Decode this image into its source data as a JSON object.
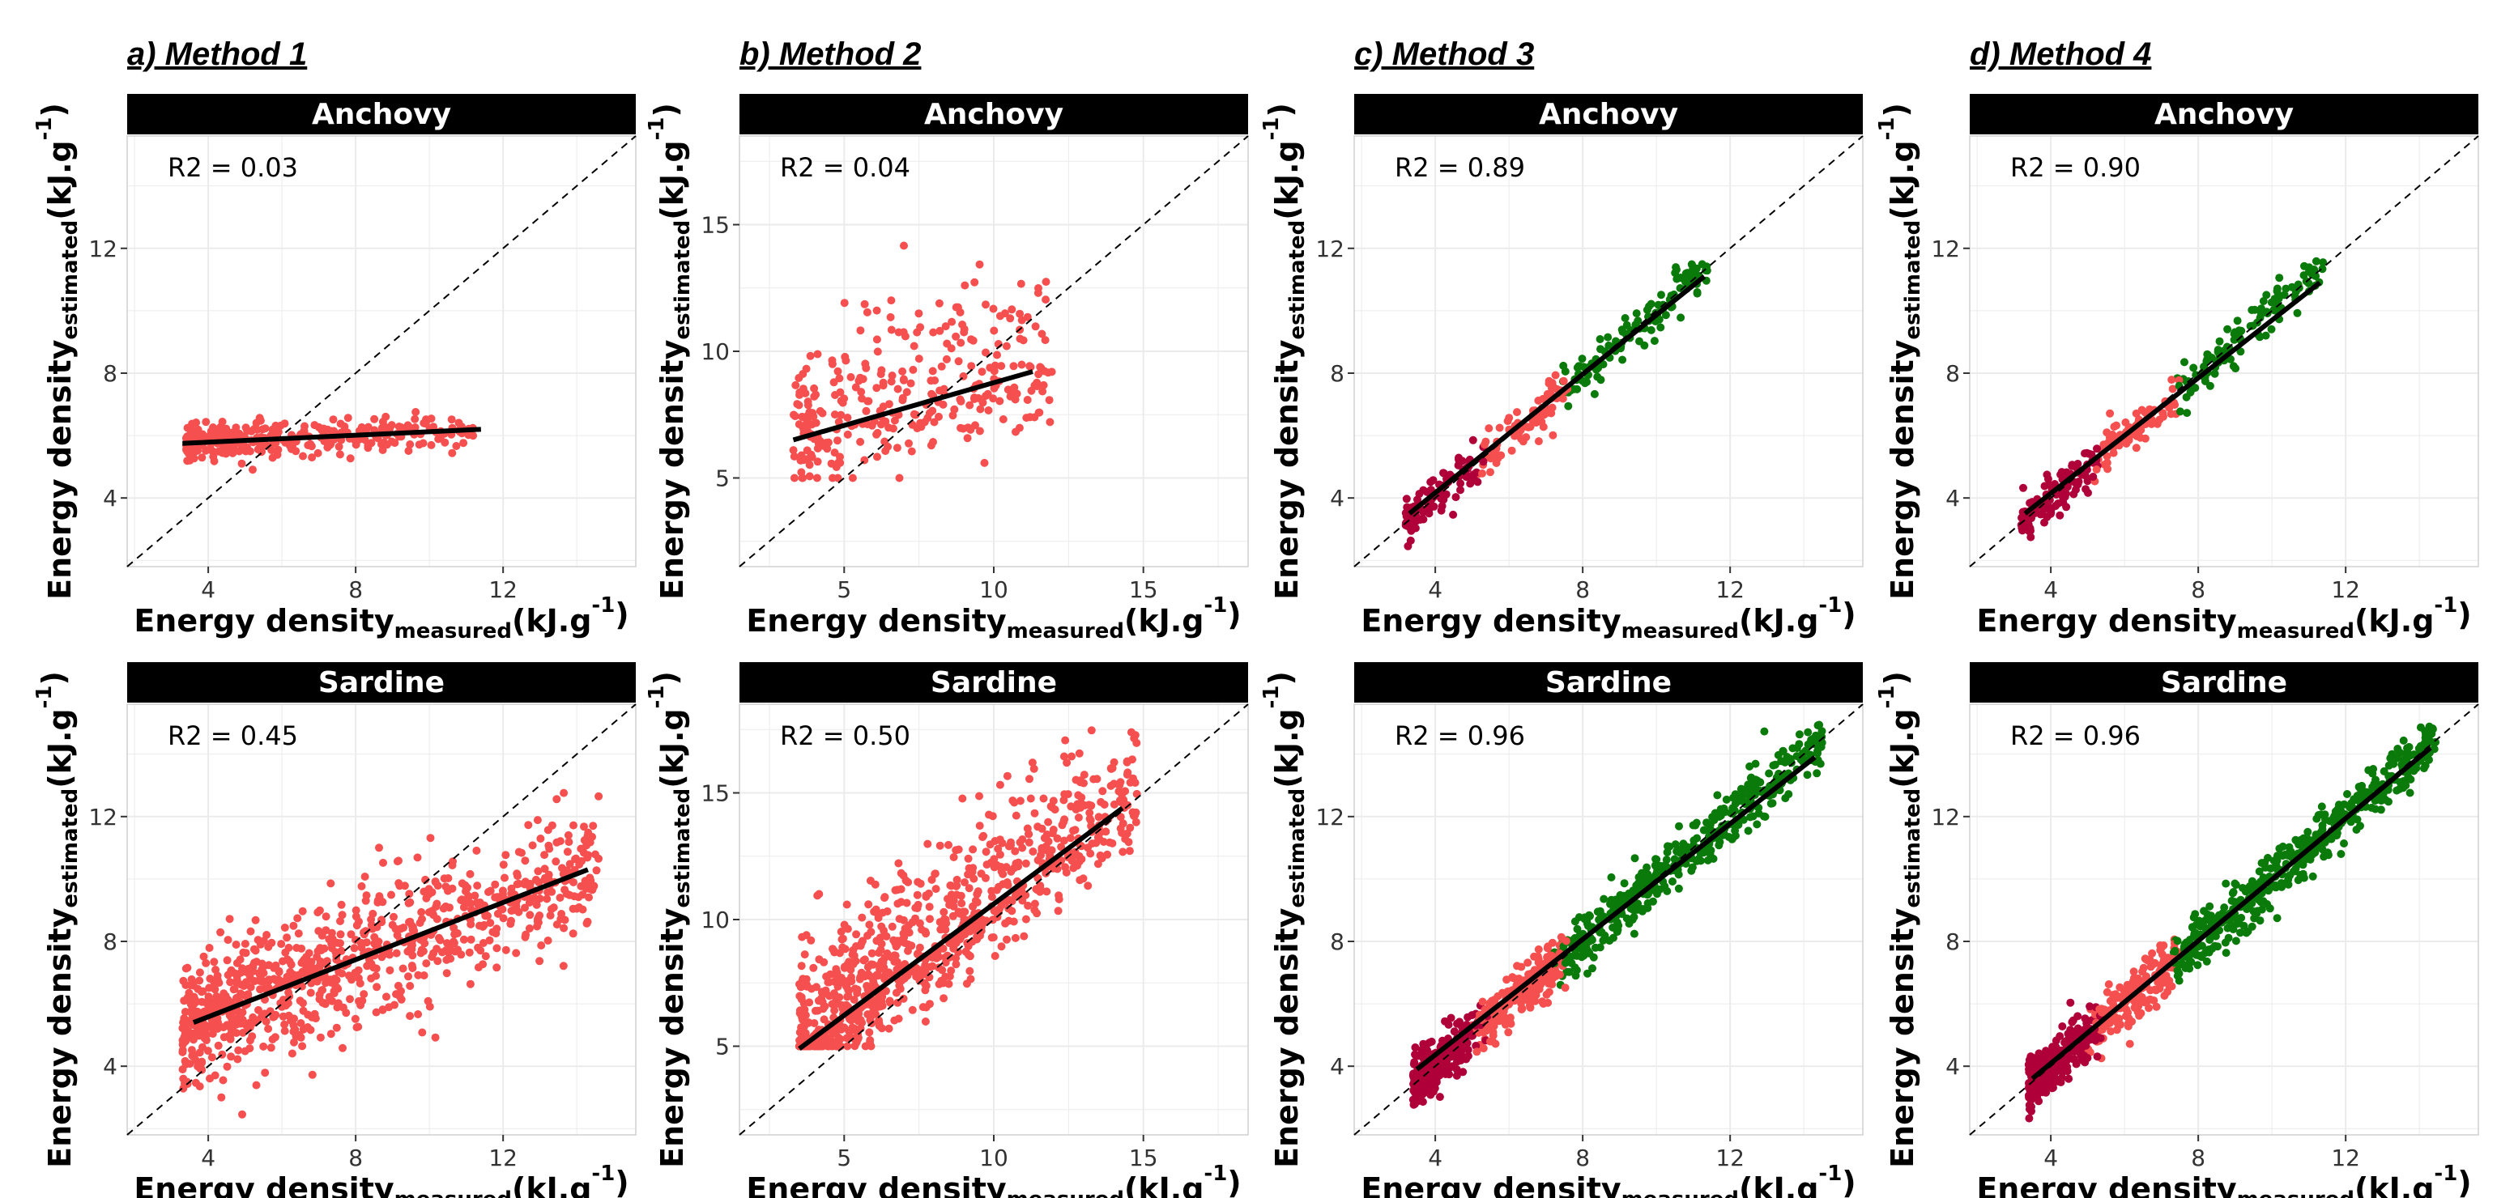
{
  "colors": {
    "mid": "#f5504f",
    "low": "#b0003a",
    "high": "#0a7a0a",
    "strip_bg": "#000000",
    "fit_line": "#000000",
    "identity_line": "#000000",
    "grid": "#ebebeb"
  },
  "axis_text": {
    "x_main": "Energy density",
    "x_sub": "measured",
    "x_unit": "(kJ.g",
    "x_exp": "-1",
    "x_close": ")",
    "y_main": "Energy density",
    "y_sub": "estimated",
    "y_unit": "(kJ.g",
    "y_exp": "-1",
    "y_close": ")"
  },
  "chart_data": [
    {
      "type": "scatter",
      "method": "a) Method 1",
      "species": "Anchovy",
      "r2_label": "R2 = 0.03",
      "xlim": [
        1.8,
        15.6
      ],
      "ylim": [
        1.8,
        15.6
      ],
      "xticks": [
        4,
        8,
        12
      ],
      "yticks": [
        4,
        8,
        12
      ],
      "colored": false,
      "x_range": [
        3.2,
        11.4
      ],
      "fit": {
        "x": [
          3.3,
          11.4
        ],
        "y": [
          5.75,
          6.2
        ]
      },
      "scatter": {
        "n": 320,
        "sd": 0.28
      }
    },
    {
      "type": "scatter",
      "method": "b) Method 2",
      "species": "Anchovy",
      "r2_label": "R2 = 0.04",
      "xlim": [
        1.5,
        18.5
      ],
      "ylim": [
        1.5,
        18.5
      ],
      "xticks": [
        5,
        10,
        15
      ],
      "yticks": [
        5,
        10,
        15
      ],
      "colored": false,
      "x_range": [
        3.3,
        12.0
      ],
      "fit": {
        "x": [
          3.3,
          11.3
        ],
        "y": [
          6.5,
          9.2
        ]
      },
      "scatter": {
        "n": 320,
        "sd": 2.3
      }
    },
    {
      "type": "scatter",
      "method": "c) Method 3",
      "species": "Anchovy",
      "r2_label": "R2 = 0.89",
      "xlim": [
        1.8,
        15.6
      ],
      "ylim": [
        1.8,
        15.6
      ],
      "xticks": [
        4,
        8,
        12
      ],
      "yticks": [
        4,
        8,
        12
      ],
      "colored": true,
      "x_range": [
        3.2,
        11.4
      ],
      "fit": {
        "x": [
          3.3,
          11.3
        ],
        "y": [
          3.5,
          11.1
        ]
      },
      "scatter": {
        "n": 320,
        "sd": 0.35
      }
    },
    {
      "type": "scatter",
      "method": "d) Method 4",
      "species": "Anchovy",
      "r2_label": "R2 = 0.90",
      "xlim": [
        1.8,
        15.6
      ],
      "ylim": [
        1.8,
        15.6
      ],
      "xticks": [
        4,
        8,
        12
      ],
      "yticks": [
        4,
        8,
        12
      ],
      "colored": true,
      "x_range": [
        3.2,
        11.4
      ],
      "fit": {
        "x": [
          3.3,
          11.3
        ],
        "y": [
          3.5,
          10.9
        ]
      },
      "scatter": {
        "n": 320,
        "sd": 0.33
      }
    },
    {
      "type": "scatter",
      "method": "a) Method 1",
      "species": "Sardine",
      "r2_label": "R2 = 0.45",
      "xlim": [
        1.8,
        15.6
      ],
      "ylim": [
        1.8,
        15.6
      ],
      "xticks": [
        4,
        8,
        12
      ],
      "yticks": [
        4,
        8,
        12
      ],
      "colored": false,
      "x_range": [
        3.3,
        14.6
      ],
      "fit": {
        "x": [
          3.6,
          14.3
        ],
        "y": [
          5.4,
          10.3
        ]
      },
      "scatter": {
        "n": 900,
        "sd": 1.05
      }
    },
    {
      "type": "scatter",
      "method": "b) Method 2",
      "species": "Sardine",
      "r2_label": "R2 = 0.50",
      "xlim": [
        1.5,
        18.5
      ],
      "ylim": [
        1.5,
        18.5
      ],
      "xticks": [
        5,
        10,
        15
      ],
      "yticks": [
        5,
        10,
        15
      ],
      "colored": false,
      "x_range": [
        3.5,
        14.8
      ],
      "fit": {
        "x": [
          3.5,
          14.3
        ],
        "y": [
          4.9,
          14.4
        ]
      },
      "scatter": {
        "n": 900,
        "sd": 1.9
      }
    },
    {
      "type": "scatter",
      "method": "c) Method 3",
      "species": "Sardine",
      "r2_label": "R2 = 0.96",
      "xlim": [
        1.8,
        15.6
      ],
      "ylim": [
        1.8,
        15.6
      ],
      "xticks": [
        4,
        8,
        12
      ],
      "yticks": [
        4,
        8,
        12
      ],
      "colored": true,
      "x_range": [
        3.4,
        14.5
      ],
      "fit": {
        "x": [
          3.5,
          14.3
        ],
        "y": [
          3.9,
          13.9
        ]
      },
      "scatter": {
        "n": 900,
        "sd": 0.42
      }
    },
    {
      "type": "scatter",
      "method": "d) Method 4",
      "species": "Sardine",
      "r2_label": "R2 = 0.96",
      "xlim": [
        1.8,
        15.6
      ],
      "ylim": [
        1.8,
        15.6
      ],
      "xticks": [
        4,
        8,
        12
      ],
      "yticks": [
        4,
        8,
        12
      ],
      "colored": true,
      "x_range": [
        3.4,
        14.5
      ],
      "fit": {
        "x": [
          3.5,
          14.3
        ],
        "y": [
          3.6,
          14.2
        ]
      },
      "scatter": {
        "n": 900,
        "sd": 0.42
      }
    }
  ]
}
